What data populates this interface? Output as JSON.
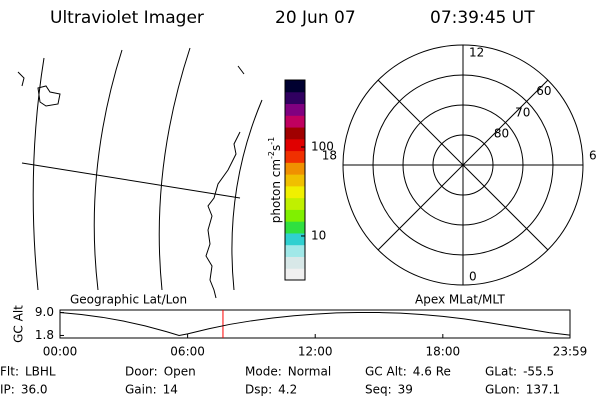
{
  "header": {
    "instrument": "Ultraviolet Imager",
    "date": "20 Jun 07",
    "time": "07:39:45 UT"
  },
  "colorbar": {
    "unit": "photon cm",
    "exp1": "-2",
    "unit2": "s",
    "exp2": "-1",
    "log": true,
    "lim": [
      3.2,
      566
    ],
    "ticks": [
      10,
      100
    ],
    "colors": [
      "#f0f0f0",
      "#d8e8e8",
      "#a0e8e8",
      "#30d0d0",
      "#30e040",
      "#80f000",
      "#c0f000",
      "#f0f000",
      "#f0c000",
      "#f09000",
      "#f03000",
      "#e00000",
      "#a00000",
      "#c00060",
      "#800080",
      "#300060",
      "#000030"
    ]
  },
  "polar": {
    "lat_circles": [
      80,
      70,
      60
    ],
    "outer_lat": 50,
    "mlt_labels": [
      12,
      18,
      6,
      0
    ]
  },
  "chart_data": {
    "type": "line",
    "ylabel": "GC Alt",
    "left_label": "Geographic Lat/Lon",
    "right_label": "Apex MLat/MLT",
    "x": [
      0,
      1,
      2,
      3,
      4,
      5,
      5.6,
      6,
      7,
      8,
      9,
      10,
      11,
      12,
      13,
      14,
      15,
      16,
      17,
      18,
      19,
      20,
      21,
      22,
      23,
      23.98
    ],
    "series": [
      {
        "color": "#000000",
        "values": [
          9.0,
          8.4,
          7.5,
          6.3,
          4.8,
          3.0,
          1.8,
          2.3,
          3.9,
          5.3,
          6.4,
          7.3,
          8.0,
          8.5,
          8.9,
          9.0,
          9.0,
          8.8,
          8.4,
          7.8,
          7.0,
          6.0,
          4.9,
          3.8,
          2.7,
          1.9
        ]
      }
    ],
    "marker_x": 7.6625,
    "marker_color": "#ff0000",
    "xlim": [
      0,
      23.98
    ],
    "ylim": [
      1.0,
      9.8
    ],
    "xticks": [
      {
        "value": 0,
        "label": "00:00"
      },
      {
        "value": 6,
        "label": "06:00"
      },
      {
        "value": 12,
        "label": "12:00"
      },
      {
        "value": 18,
        "label": "18:00"
      },
      {
        "value": 23.98,
        "label": "23:59"
      }
    ],
    "yticks": [
      {
        "value": 9.0,
        "label": "9.0"
      },
      {
        "value": 1.8,
        "label": "1.8"
      }
    ]
  },
  "footer": [
    [
      {
        "k": "Flt:",
        "v": "LBHL"
      },
      {
        "k": "Door:",
        "v": "Open"
      },
      {
        "k": "Mode:",
        "v": "Normal"
      },
      {
        "k": "GC Alt:",
        "v": "4.6 Re"
      },
      {
        "k": "GLat:",
        "v": "-55.5"
      }
    ],
    [
      {
        "k": "IP:",
        "v": "36.0"
      },
      {
        "k": "Gain:",
        "v": "14"
      },
      {
        "k": "Dsp:",
        "v": "4.2"
      },
      {
        "k": "Seq:",
        "v": "39"
      },
      {
        "k": "GLon:",
        "v": "137.1"
      }
    ]
  ]
}
